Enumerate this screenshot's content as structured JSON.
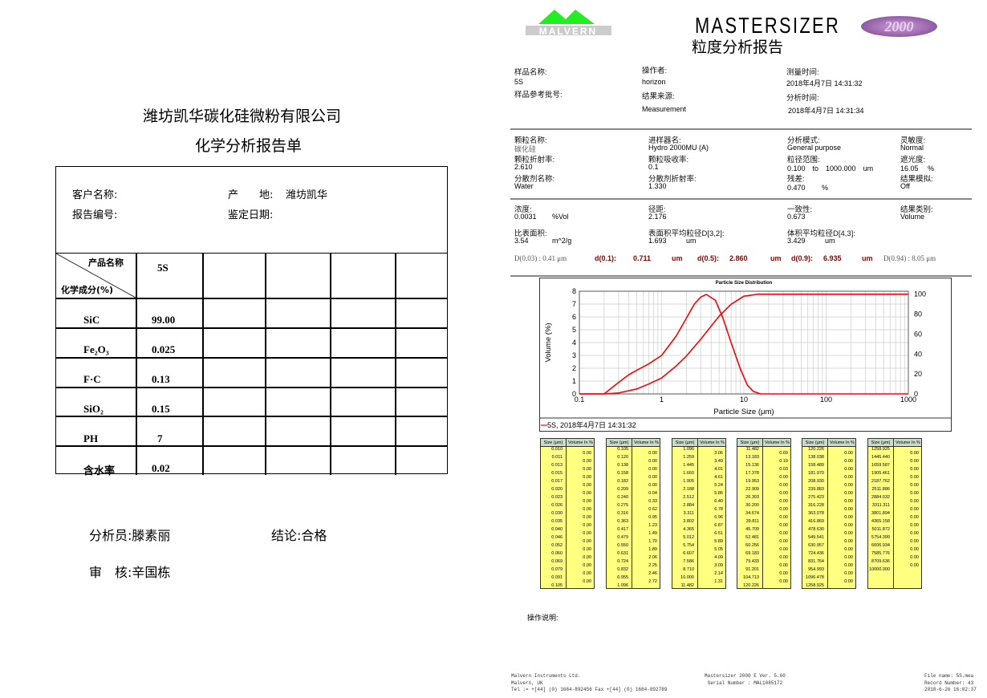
{
  "left": {
    "company": "潍坊凯华碳化硅微粉有限公司",
    "title": "化学分析报告单",
    "customer_label": "客户名称:",
    "origin_label": "产　　地:",
    "origin_value": "潍坊凯华",
    "report_no_label": "报告编号:",
    "date_label": "鉴定日期:",
    "col_header_product": "产品名称",
    "col_header_component": "化学成分(%)",
    "product": "5S",
    "rows": [
      {
        "name": "SiC",
        "value": "99.00"
      },
      {
        "name": "Fe₂O₃",
        "value": "0.025"
      },
      {
        "name": "F·C",
        "value": "0.13"
      },
      {
        "name": "SiO₂",
        "value": "0.15"
      },
      {
        "name": "PH",
        "value": "7"
      },
      {
        "name": "含水率",
        "value": "0.02"
      }
    ],
    "analyst_label": "分析员:",
    "analyst": "滕素丽",
    "conclusion_label": "结论:",
    "conclusion": "合格",
    "reviewer_label": "审　核:",
    "reviewer": "辛国栋"
  },
  "right": {
    "logo_text": "MALVERN",
    "brand": "MASTERSIZER",
    "brand_badge": "2000",
    "report_title": "粒度分析报告",
    "info": {
      "sample_name_label": "样品名称:",
      "sample_name": "5S",
      "sample_ref_label": "样品参考批号:",
      "operator_label": "操作者:",
      "operator": "horizon",
      "source_label": "结果来源:",
      "source": "Measurement",
      "meas_time_label": "测量时间:",
      "meas_time": "2018年4月7日 14:31:32",
      "analysis_time_label": "分析时间:",
      "analysis_time": "2018年4月7日 14:31:34"
    },
    "params": [
      [
        "颗粒名称:",
        "碳化硅",
        "进样器名:",
        "Hydro 2000MU (A)",
        "分析模式:",
        "General purpose",
        "灵敏度:",
        "Normal"
      ],
      [
        "颗粒折射率:",
        "2.610",
        "颗粒吸收率:",
        "0.1",
        "粒径范围:",
        "0.100　to　1000.000　um",
        "遮光度:",
        "16.05　 %"
      ],
      [
        "分散剂名称:",
        "Water",
        "分散剂折射率:",
        "1.330",
        "残差:",
        "0.470　　 %",
        "结果模拟:",
        "Off"
      ]
    ],
    "results": [
      [
        "浓度:",
        "0.0031",
        "%Vol",
        "径距:",
        "2.176",
        "",
        "一致性:",
        "0.673",
        "",
        "结果类别:",
        "Volume"
      ],
      [
        "比表面积:",
        "3.54",
        "m^2/g",
        "表面积平均粒径D[3,2]:",
        "1.693",
        "um",
        "体积平均粒径D[4,3]:",
        "3.429",
        "um",
        "",
        ""
      ]
    ],
    "dline": {
      "d003": "D(0.03) : 0.41 μm",
      "d01_label": "d(0.1):",
      "d01": "0.711",
      "d05_label": "d(0.5):",
      "d05": "2.860",
      "d09_label": "d(0.9):",
      "d09": "6.935",
      "unit": "um",
      "d094": "D(0.94) : 8.05 μm"
    },
    "table_headers": [
      "Size (µm)",
      "Volume In %"
    ],
    "tables": [
      {
        "sizes": [
          "0.010",
          "0.011",
          "0.013",
          "0.015",
          "0.017",
          "0.020",
          "0.023",
          "0.026",
          "0.030",
          "0.035",
          "0.040",
          "0.046",
          "0.052",
          "0.060",
          "0.069",
          "0.079",
          "0.091",
          "0.105"
        ],
        "volumes": [
          "0.00",
          "0.00",
          "0.00",
          "0.00",
          "0.00",
          "0.00",
          "0.00",
          "0.00",
          "0.00",
          "0.00",
          "0.00",
          "0.00",
          "0.00",
          "0.00",
          "0.00",
          "0.00",
          "0.00"
        ]
      },
      {
        "sizes": [
          "0.105",
          "0.120",
          "0.138",
          "0.158",
          "0.182",
          "0.209",
          "0.240",
          "0.275",
          "0.316",
          "0.363",
          "0.417",
          "0.479",
          "0.550",
          "0.631",
          "0.724",
          "0.832",
          "0.955",
          "1.096"
        ],
        "volumes": [
          "0.00",
          "0.00",
          "0.00",
          "0.00",
          "0.00",
          "0.04",
          "0.33",
          "0.62",
          "0.95",
          "1.23",
          "1.49",
          "1.70",
          "1.89",
          "2.06",
          "2.25",
          "2.46",
          "2.72"
        ]
      },
      {
        "sizes": [
          "1.096",
          "1.259",
          "1.445",
          "1.660",
          "1.905",
          "2.188",
          "2.512",
          "2.884",
          "3.311",
          "3.802",
          "4.365",
          "5.012",
          "5.754",
          "6.607",
          "7.586",
          "8.710",
          "10.000",
          "11.482"
        ],
        "volumes": [
          "3.06",
          "3.49",
          "4.01",
          "4.61",
          "5.24",
          "5.86",
          "6.40",
          "6.78",
          "6.96",
          "6.87",
          "6.51",
          "5.89",
          "5.05",
          "4.09",
          "3.09",
          "2.14",
          "1.31"
        ]
      },
      {
        "sizes": [
          "11.482",
          "13.183",
          "15.136",
          "17.378",
          "19.953",
          "22.909",
          "26.303",
          "30.200",
          "34.674",
          "39.811",
          "45.709",
          "52.481",
          "60.256",
          "69.183",
          "79.433",
          "91.201",
          "104.713",
          "120.226"
        ],
        "volumes": [
          "0.69",
          "0.19",
          "0.03",
          "0.00",
          "0.00",
          "0.00",
          "0.00",
          "0.00",
          "0.00",
          "0.00",
          "0.00",
          "0.00",
          "0.00",
          "0.00",
          "0.00",
          "0.00",
          "0.00"
        ]
      },
      {
        "sizes": [
          "120.226",
          "138.038",
          "158.489",
          "181.970",
          "208.930",
          "239.883",
          "275.423",
          "316.228",
          "363.078",
          "416.869",
          "478.630",
          "549.541",
          "630.957",
          "724.436",
          "831.764",
          "954.993",
          "1096.478",
          "1258.925"
        ],
        "volumes": [
          "0.00",
          "0.00",
          "0.00",
          "0.00",
          "0.00",
          "0.00",
          "0.00",
          "0.00",
          "0.00",
          "0.00",
          "0.00",
          "0.00",
          "0.00",
          "0.00",
          "0.00",
          "0.00",
          "0.00"
        ]
      },
      {
        "sizes": [
          "1258.925",
          "1445.440",
          "1659.587",
          "1905.461",
          "2187.762",
          "2511.886",
          "2884.032",
          "3311.311",
          "3801.894",
          "4365.158",
          "5011.872",
          "5754.399",
          "6606.934",
          "7585.776",
          "8709.636",
          "10000.000"
        ],
        "volumes": [
          "0.00",
          "0.00",
          "0.00",
          "0.00",
          "0.00",
          "0.00",
          "0.00",
          "0.00",
          "0.00",
          "0.00",
          "0.00",
          "0.00",
          "0.00",
          "0.00",
          "0.00"
        ]
      }
    ],
    "notes_label": "操作说明:",
    "footer": {
      "left": [
        "Malvern Instruments Ltd.",
        "Malvern, UK",
        "Tel := +[44] (0) 1684-892456 Fax +[44] (0) 1684-892789"
      ],
      "center": [
        "Mastersizer 2000 E Ver. 5.60",
        "Serial Number : MAL1085172"
      ],
      "right": [
        "File name: 5S.mea",
        "Record Number: 43",
        "2018-6-26 16:02:37"
      ]
    }
  },
  "chart_data": {
    "type": "line",
    "title": "Particle Size Distribution",
    "xlabel": "Particle Size (μm)",
    "ylabel": "Volume (%)",
    "xscale": "log",
    "xlim": [
      0.1,
      1000
    ],
    "ylim": [
      0,
      8
    ],
    "y2lim": [
      0,
      103
    ],
    "xticks": [
      "0.1",
      "1",
      "10",
      "100",
      "1000"
    ],
    "yticks": [
      "0",
      "1",
      "2",
      "3",
      "4",
      "5",
      "6",
      "7",
      "8"
    ],
    "y2ticks": [
      "0",
      "20",
      "40",
      "60",
      "80",
      "100"
    ],
    "grid": true,
    "color": "#ff0000",
    "legend": "5S, 2018年4月7日 14:31:32",
    "legend_placement": "bottom",
    "series": [
      {
        "axis": "left",
        "x": [
          0.1,
          0.2,
          0.3,
          0.4,
          0.5,
          0.7,
          1,
          1.5,
          2,
          2.5,
          3,
          3.5,
          4.5,
          5.5,
          7,
          9,
          11,
          13,
          16,
          1000
        ],
        "y": [
          0,
          0,
          0.9,
          1.5,
          1.85,
          2.35,
          3.0,
          4.5,
          5.9,
          7.0,
          7.55,
          7.75,
          7.3,
          6.0,
          4.0,
          2.0,
          0.7,
          0.2,
          0,
          0
        ]
      },
      {
        "axis": "right",
        "x": [
          0.1,
          0.2,
          0.3,
          0.5,
          0.7,
          1,
          1.5,
          2,
          3,
          4,
          5,
          7,
          10,
          15,
          1000
        ],
        "y": [
          0,
          0,
          1,
          5,
          10,
          16,
          28,
          38,
          55,
          68,
          78,
          90,
          98,
          100,
          100
        ]
      }
    ]
  }
}
